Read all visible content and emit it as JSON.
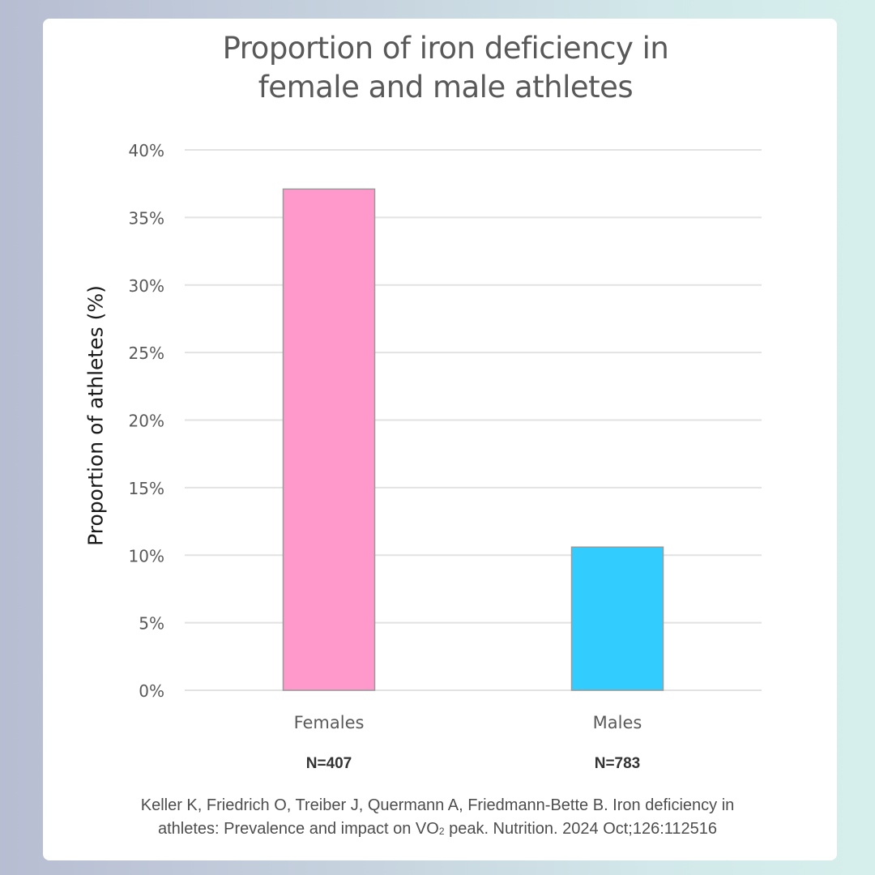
{
  "chart_data": {
    "type": "bar",
    "title_lines": [
      "Proportion of iron deficiency in",
      "female and male athletes"
    ],
    "xlabel": "",
    "ylabel": "Proportion of athletes (%)",
    "ylim": [
      0,
      40
    ],
    "yticks": [
      0,
      5,
      10,
      15,
      20,
      25,
      30,
      35,
      40
    ],
    "ytick_labels": [
      "0%",
      "5%",
      "10%",
      "15%",
      "20%",
      "25%",
      "30%",
      "35%",
      "40%"
    ],
    "grid": true,
    "categories": [
      "Females",
      "Males"
    ],
    "sample_sizes": [
      "N=407",
      "N=783"
    ],
    "values": [
      37.1,
      10.6
    ],
    "colors": [
      "#ff99cc",
      "#33ccff"
    ]
  },
  "citation": {
    "line1": "Keller K, Friedrich O, Treiber J, Quermann A, Friedmann-Bette B. Iron deficiency in",
    "line2_pre": "athletes: Prevalence and impact on VO",
    "line2_sub": "2",
    "line2_post": " peak. Nutrition. 2024 Oct;126:112516"
  }
}
